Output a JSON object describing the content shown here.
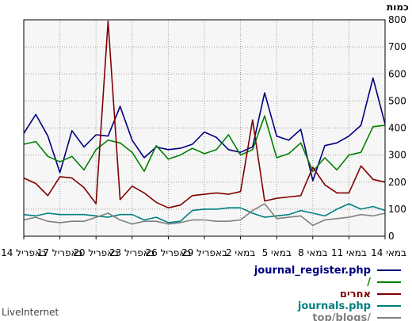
{
  "chart_data": {
    "type": "line",
    "ylabel": "כמות",
    "ylim": [
      0,
      800
    ],
    "y_ticks": [
      0,
      100,
      200,
      300,
      400,
      500,
      600,
      700,
      800
    ],
    "x_tick_labels": [
      "14 במאי",
      "11 במאי",
      "8 במאי",
      "5 במאי",
      "2 במאי",
      "29 באפריל",
      "26 באפריל",
      "23 באפריל",
      "20 באפריל",
      "17 באפריל",
      "14 באפריל"
    ],
    "grid": true,
    "series": [
      {
        "name": "journal_register.php",
        "color": "#000080",
        "values": [
          415,
          585,
          410,
          370,
          345,
          335,
          205,
          395,
          355,
          370,
          530,
          330,
          310,
          320,
          365,
          385,
          340,
          325,
          320,
          330,
          290,
          355,
          480,
          370,
          375,
          330,
          390,
          235,
          370,
          450,
          380
        ]
      },
      {
        "name": "/",
        "color": "#008000",
        "values": [
          410,
          405,
          310,
          300,
          245,
          290,
          240,
          345,
          305,
          290,
          445,
          320,
          300,
          375,
          320,
          305,
          325,
          300,
          285,
          335,
          240,
          310,
          345,
          355,
          320,
          245,
          295,
          275,
          295,
          350,
          340
        ]
      },
      {
        "name": "אחרים",
        "color": "#800000",
        "values": [
          200,
          210,
          260,
          160,
          160,
          190,
          255,
          150,
          145,
          140,
          130,
          430,
          165,
          155,
          160,
          155,
          150,
          115,
          105,
          125,
          160,
          185,
          135,
          795,
          120,
          180,
          215,
          220,
          150,
          195,
          215
        ]
      },
      {
        "name": "journals.php",
        "color": "#008080",
        "values": [
          95,
          110,
          100,
          120,
          100,
          75,
          85,
          95,
          80,
          75,
          70,
          85,
          105,
          105,
          100,
          100,
          95,
          55,
          50,
          70,
          60,
          80,
          80,
          70,
          75,
          80,
          80,
          80,
          85,
          75,
          80
        ]
      },
      {
        "name": "top/blogs/",
        "color": "#808080",
        "values": [
          85,
          75,
          80,
          70,
          65,
          60,
          40,
          75,
          70,
          65,
          120,
          95,
          60,
          55,
          55,
          60,
          60,
          50,
          45,
          55,
          55,
          45,
          60,
          85,
          70,
          55,
          55,
          50,
          55,
          70,
          60
        ]
      }
    ]
  },
  "footer": {
    "brand": "LiveInternet"
  }
}
